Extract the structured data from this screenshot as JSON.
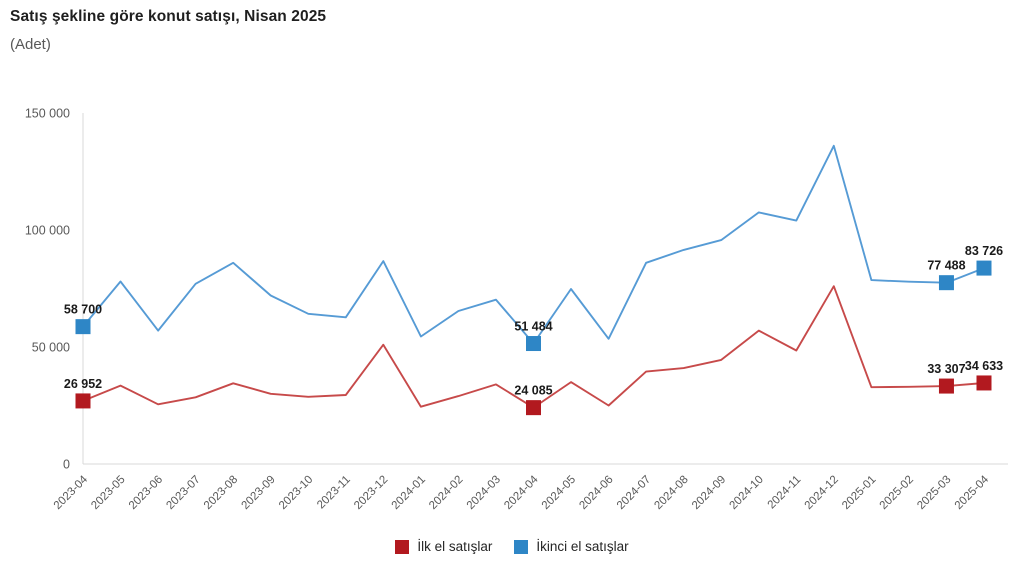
{
  "title": "Satış şekline göre konut satışı, Nisan 2025",
  "subtitle": "(Adet)",
  "legend": [
    {
      "label": "İlk el satışlar",
      "color": "#b2191f"
    },
    {
      "label": "İkinci el satışlar",
      "color": "#2e86c6"
    }
  ],
  "colors": {
    "first_hand_line": "#c74a4a",
    "first_hand_marker": "#b2191f",
    "second_hand_line": "#569bd5",
    "second_hand_marker": "#2e86c6",
    "axis": "#d9d9d9",
    "tick_text": "#595959",
    "data_label_text": "#1a1a1a"
  },
  "chart_data": {
    "type": "line",
    "title": "Satış şekline göre konut satışı, Nisan 2025",
    "ylabel": "(Adet)",
    "xlabel": "",
    "grid": false,
    "legend_position": "bottom",
    "ylim": [
      0,
      150000
    ],
    "yticks": [
      0,
      50000,
      100000,
      150000
    ],
    "ytick_labels": [
      "0",
      "50 000",
      "100 000",
      "150 000"
    ],
    "categories": [
      "2023-04",
      "2023-05",
      "2023-06",
      "2023-07",
      "2023-08",
      "2023-09",
      "2023-10",
      "2023-11",
      "2023-12",
      "2024-01",
      "2024-02",
      "2024-03",
      "2024-04",
      "2024-05",
      "2024-06",
      "2024-07",
      "2024-08",
      "2024-09",
      "2024-10",
      "2024-11",
      "2024-12",
      "2025-01",
      "2025-02",
      "2025-03",
      "2025-04"
    ],
    "series": [
      {
        "name": "İlk el satışlar",
        "values": [
          26952,
          33500,
          25500,
          28500,
          34500,
          30000,
          28700,
          29500,
          51000,
          24500,
          29000,
          34000,
          24085,
          35000,
          25000,
          39500,
          41000,
          44500,
          57000,
          48500,
          76000,
          32800,
          33000,
          33307,
          34633
        ],
        "labeled_points": {
          "0": "26 952",
          "12": "24 085",
          "23": "33 307",
          "24": "34 633"
        }
      },
      {
        "name": "İkinci el satışlar",
        "values": [
          58700,
          78000,
          57000,
          77000,
          86000,
          72000,
          64200,
          62700,
          86700,
          54500,
          65400,
          70200,
          51484,
          74800,
          53500,
          86000,
          91500,
          95700,
          107500,
          104000,
          136000,
          78600,
          77900,
          77488,
          83726
        ],
        "labeled_points": {
          "0": "58 700",
          "12": "51 484",
          "23": "77 488",
          "24": "83 726"
        }
      }
    ]
  }
}
